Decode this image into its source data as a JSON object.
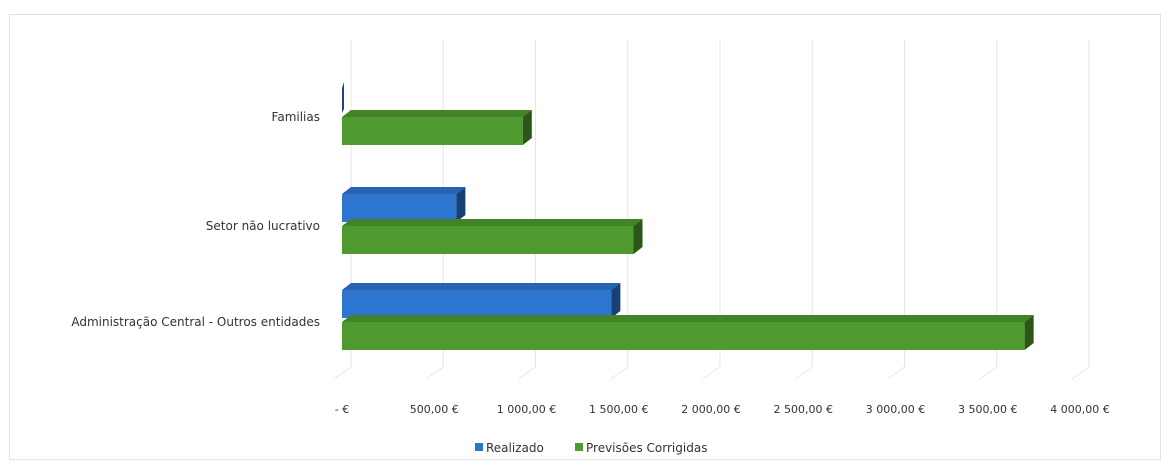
{
  "chart_data": {
    "type": "bar",
    "orientation": "horizontal",
    "categories": [
      "Familias",
      "Setor não lucrativo",
      "Administração Central - Outros entidades"
    ],
    "series": [
      {
        "name": "Realizado",
        "values": [
          0,
          620,
          1460
        ],
        "color": "#2e75d0"
      },
      {
        "name": "Previsões Corrigidas",
        "values": [
          980,
          1580,
          3700
        ],
        "color": "#4f9a2e"
      }
    ],
    "x_ticks": [
      "- €",
      "500,00 €",
      "1 000,00 €",
      "1 500,00 €",
      "2 000,00 €",
      "2 500,00 €",
      "3 000,00 €",
      "3 500,00 €",
      "4 000,00 €"
    ],
    "xlim": [
      0,
      4000
    ],
    "grid": true,
    "legend": "bottom-center",
    "title": "",
    "xlabel": "",
    "ylabel": ""
  }
}
